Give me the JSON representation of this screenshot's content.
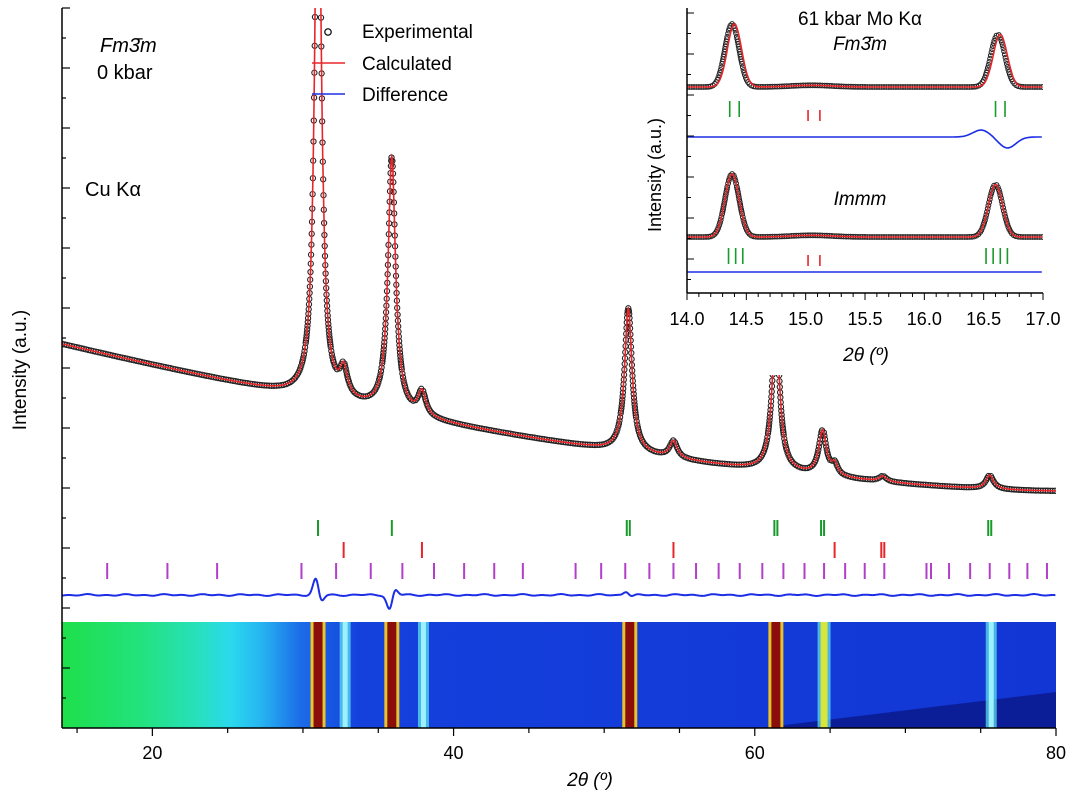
{
  "chart_data": [
    {
      "type": "scatter",
      "panel": "main",
      "xlabel": "2θ (º)",
      "ylabel": "Intensity (a.u.)",
      "xlim": [
        14,
        80
      ],
      "ylim": [
        0,
        12
      ],
      "x_ticks": [
        20,
        40,
        60,
        80
      ],
      "annotations": {
        "phase": "Fm3̄m",
        "pressure": "0 kbar",
        "radiation": "Cu Kα"
      },
      "legend": {
        "placement": "top-center",
        "items": [
          {
            "label": "Experimental",
            "marker": "open-circle",
            "color": "#222222"
          },
          {
            "label": "Calculated",
            "marker": "line",
            "color": "#e8262a"
          },
          {
            "label": "Difference",
            "marker": "line",
            "color": "#1b2ee6"
          }
        ]
      },
      "background": {
        "start": 6.4,
        "end": 3.95
      },
      "peaks": [
        {
          "position": 31.0,
          "height": 10.4,
          "width": 0.25
        },
        {
          "position": 32.7,
          "height": 0.46,
          "width": 0.3
        },
        {
          "position": 35.9,
          "height": 4.25,
          "width": 0.3
        },
        {
          "position": 37.9,
          "height": 0.4,
          "width": 0.3
        },
        {
          "position": 51.6,
          "height": 2.4,
          "width": 0.3
        },
        {
          "position": 54.6,
          "height": 0.28,
          "width": 0.3
        },
        {
          "position": 61.4,
          "height": 2.46,
          "width": 0.3
        },
        {
          "position": 64.5,
          "height": 0.74,
          "width": 0.3
        },
        {
          "position": 65.3,
          "height": 0.18,
          "width": 0.25
        },
        {
          "position": 68.5,
          "height": 0.09,
          "width": 0.3
        },
        {
          "position": 75.6,
          "height": 0.23,
          "width": 0.3
        }
      ],
      "reflection_ticks": [
        {
          "phase_color": "#1a9a2a",
          "positions": [
            31.0,
            35.9,
            51.5,
            51.7,
            61.3,
            61.5,
            64.4,
            64.6,
            75.5,
            75.7
          ]
        },
        {
          "phase_color": "#e8262a",
          "positions": [
            32.7,
            37.9,
            54.6,
            65.3,
            68.4,
            68.6
          ]
        },
        {
          "phase_color": "#b13fc8",
          "positions": [
            17.0,
            21.0,
            24.3,
            29.9,
            32.2,
            34.5,
            36.6,
            38.7,
            40.7,
            42.7,
            44.6,
            48.1,
            49.8,
            51.4,
            53.0,
            54.6,
            56.1,
            57.6,
            59.0,
            60.5,
            61.9,
            63.3,
            64.6,
            66.0,
            67.3,
            68.6,
            71.4,
            71.7,
            72.9,
            74.3,
            75.6,
            76.9,
            78.1,
            79.4
          ]
        }
      ],
      "difference_features": [
        {
          "position": 31.0,
          "amplitude": 0.9
        },
        {
          "position": 35.9,
          "amplitude": -0.8
        },
        {
          "position": 51.6,
          "amplitude": 0.2
        }
      ],
      "detector_image": {
        "description": "2D detector strip aligned with 2θ axis",
        "bright_lines": [
          31.0,
          32.8,
          35.9,
          38.0,
          51.7,
          61.4,
          64.6,
          75.7
        ]
      }
    },
    {
      "type": "scatter",
      "panel": "inset",
      "title": "61 kbar Mo Kα",
      "xlabel": "2θ (º)",
      "ylabel": "Intensity (a.u.)",
      "xlim": [
        14.0,
        17.0
      ],
      "x_ticks": [
        "14.0",
        "14.5",
        "15.0",
        "15.5",
        "16.0",
        "16.5",
        "17.0"
      ],
      "x_tick_values": [
        14.0,
        14.5,
        15.0,
        15.5,
        16.0,
        16.5,
        17.0
      ],
      "subpanels": [
        {
          "phase": "Fm3̄m",
          "peaks": [
            {
              "position": 14.38,
              "height": 3.0,
              "width": 0.08
            },
            {
              "position": 16.62,
              "height": 2.5,
              "width": 0.08
            }
          ],
          "calc_shift": 0.02,
          "ticks_green": [
            14.36,
            14.44,
            16.6,
            16.68
          ],
          "ticks_red": [
            15.02,
            15.12
          ],
          "difference_features": [
            {
              "position": 16.48,
              "amplitude": 0.35
            },
            {
              "position": 16.7,
              "amplitude": -0.55
            }
          ]
        },
        {
          "phase": "Immm",
          "peaks": [
            {
              "position": 14.38,
              "height": 3.0,
              "width": 0.08
            },
            {
              "position": 16.6,
              "height": 2.5,
              "width": 0.08
            }
          ],
          "calc_shift": 0.0,
          "ticks_green": [
            14.35,
            14.41,
            14.47,
            16.52,
            16.58,
            16.64,
            16.7
          ],
          "ticks_red": [
            15.02,
            15.12
          ],
          "difference_features": []
        }
      ]
    }
  ]
}
